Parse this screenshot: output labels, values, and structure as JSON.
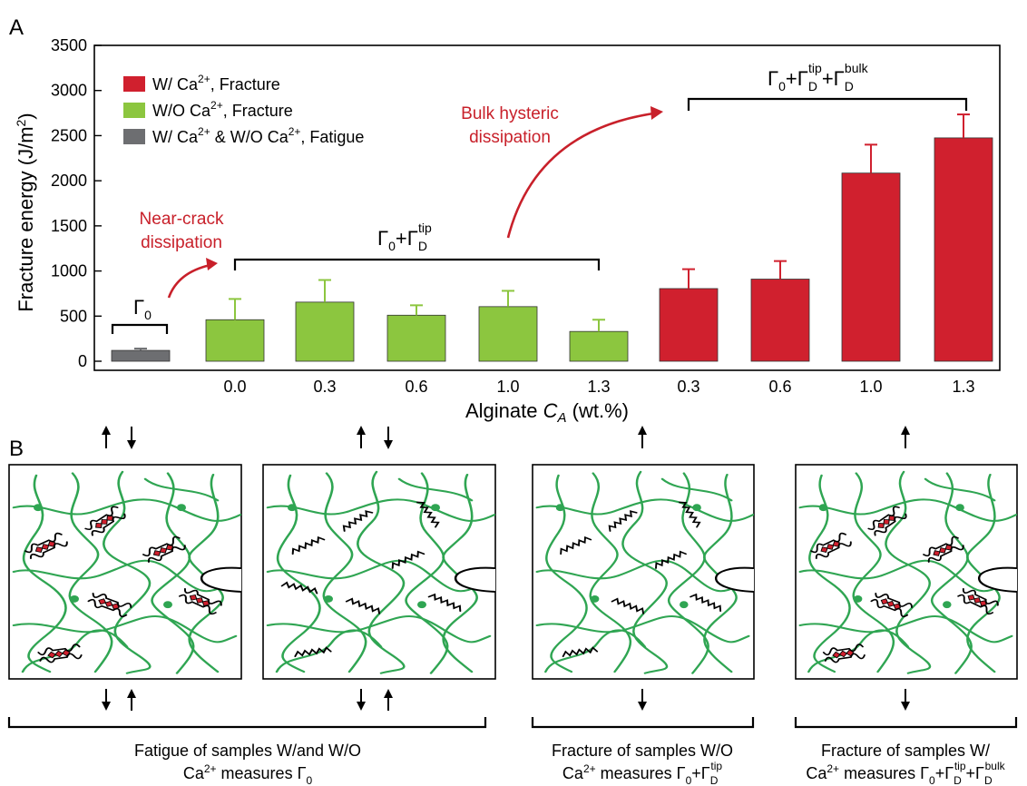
{
  "panel_a_label": "A",
  "panel_b_label": "B",
  "chart_data": {
    "type": "bar",
    "xlabel_prefix": "Alginate ",
    "xlabel_var": "C",
    "xlabel_sub": "A",
    "xlabel_suffix": " (wt.%)",
    "ylabel": "Fracture energy (J/m",
    "ylabel_sup": "2",
    "ylabel_close": ")",
    "ylim": [
      0,
      3500
    ],
    "yticks": [
      "0",
      "500",
      "1000",
      "1500",
      "2000",
      "2500",
      "3000",
      "3500"
    ],
    "categories": [
      "",
      "0.0",
      "0.3",
      "0.6",
      "1.0",
      "1.3",
      "0.3",
      "0.6",
      "1.0",
      "1.3"
    ],
    "values": [
      120,
      460,
      655,
      510,
      605,
      330,
      805,
      910,
      2085,
      2475
    ],
    "errors": [
      20,
      230,
      245,
      110,
      175,
      130,
      215,
      200,
      315,
      260
    ],
    "groups": [
      "fatigue",
      "wo",
      "wo",
      "wo",
      "wo",
      "wo",
      "w",
      "w",
      "w",
      "w"
    ],
    "legend": [
      {
        "key": "w",
        "text": "W/ Ca",
        "sup": "2+",
        "rest": ", Fracture"
      },
      {
        "key": "wo",
        "text": "W/O Ca",
        "sup": "2+",
        "rest": ", Fracture"
      },
      {
        "key": "fatigue",
        "text": "W/ Ca",
        "sup": "2+",
        "rest": " & W/O Ca",
        "sup2": "2+",
        "rest2": ", Fatigue"
      }
    ],
    "legend_placement": "top-left",
    "grid": false
  },
  "colors": {
    "w": "#d0202e",
    "wo": "#8cc63f",
    "fatigue": "#6d6e71",
    "annotation": "#c8202a",
    "chain": "#2fa552"
  },
  "annotations": {
    "near_crack": [
      "Near-crack",
      "dissipation"
    ],
    "bulk": [
      "Bulk hysteric",
      "dissipation"
    ],
    "gamma0": "Γ",
    "gamma0_sub": "0"
  },
  "captions": {
    "c1_line1": "Fatigue of samples W/and W/O",
    "c1_line2_a": "Ca",
    "c1_line2_b": " measures Γ",
    "c2_line1": "Fracture of samples W/O",
    "c2_line2_a": "Ca",
    "c2_line2_b": " measures Γ",
    "c3_line1": "Fracture of samples W/",
    "c3_line2_a": "Ca",
    "c3_line2_b": " measures Γ"
  },
  "icons": [
    "up-arrow-icon",
    "down-arrow-icon"
  ]
}
